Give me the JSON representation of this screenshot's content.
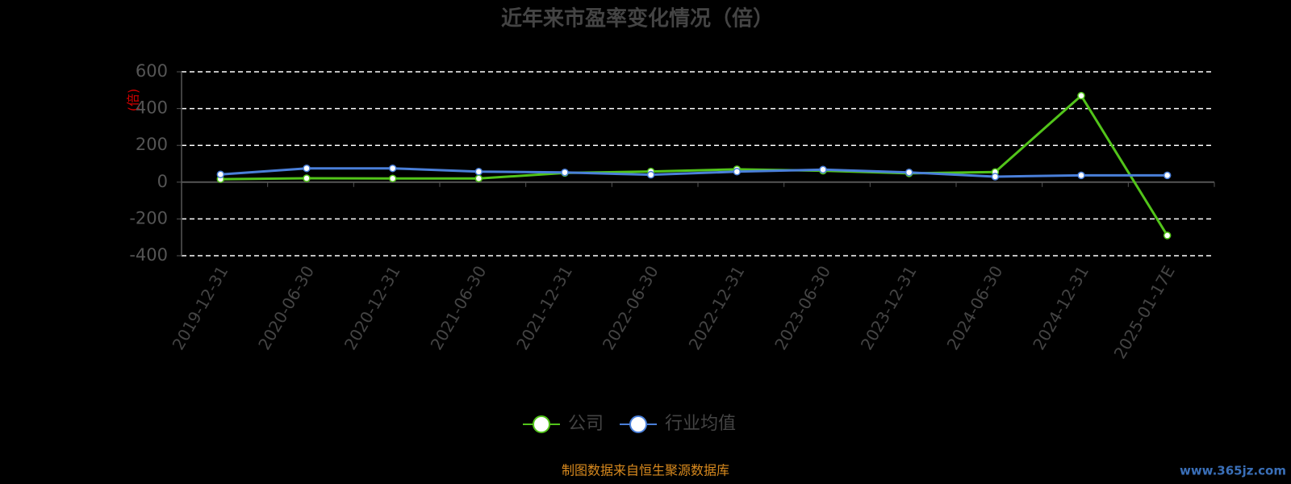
{
  "chart_data": {
    "type": "line",
    "title": "近年来市盈率变化情况（倍）",
    "y_label": "(倍)",
    "categories": [
      "2019-12-31",
      "2020-06-30",
      "2020-12-31",
      "2021-06-30",
      "2021-12-31",
      "2022-06-30",
      "2022-12-31",
      "2023-06-30",
      "2023-12-31",
      "2024-06-30",
      "2024-12-31",
      "2025-01-17E"
    ],
    "series": [
      {
        "name": "公司",
        "color": "#52c41a",
        "values": [
          16,
          21,
          20,
          20,
          50,
          58,
          70,
          62,
          48,
          55,
          470,
          -290
        ]
      },
      {
        "name": "行业均值",
        "color": "#4a7fd9",
        "values": [
          42,
          75,
          75,
          57,
          53,
          40,
          57,
          68,
          53,
          30,
          37,
          37
        ]
      }
    ],
    "ylim": [
      -400,
      600
    ],
    "yticks": [
      -400,
      -200,
      0,
      200,
      400,
      600
    ],
    "grid": true,
    "source": "制图数据来自恒生聚源数据库",
    "watermark": "www.365jz.com"
  }
}
